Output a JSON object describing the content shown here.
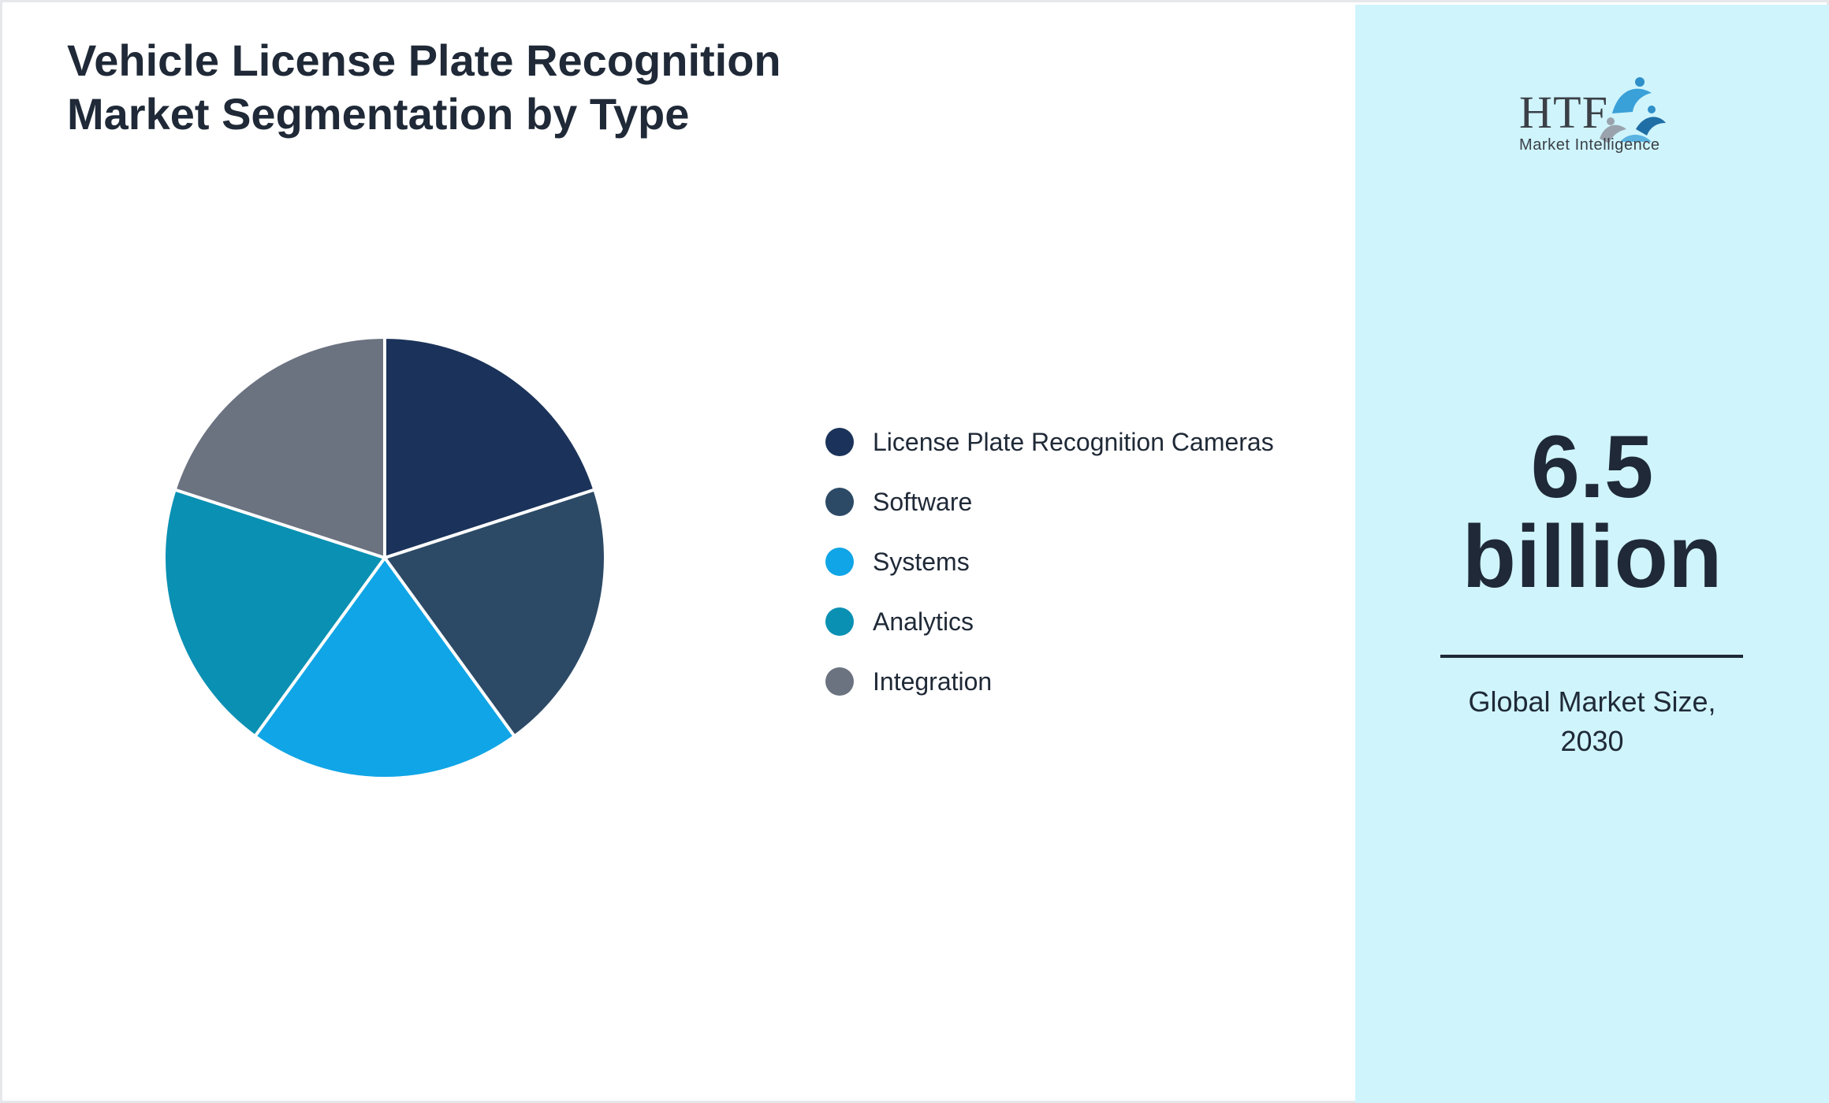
{
  "title_lines": [
    "Vehicle License Plate Recognition",
    "Market Segmentation by Type"
  ],
  "chart_data": {
    "type": "pie",
    "title": "Vehicle License Plate Recognition Market Segmentation by Type",
    "categories": [
      "License Plate Recognition Cameras",
      "Software",
      "Systems",
      "Analytics",
      "Integration"
    ],
    "values": [
      20,
      20,
      20,
      20,
      20
    ],
    "colors": [
      "#1b335a",
      "#2c4a66",
      "#10a5e6",
      "#0a90b3",
      "#6b7280"
    ],
    "legend_position": "right"
  },
  "market": {
    "value_line1": "6.5",
    "value_line2": "billion",
    "caption_line1": "Global Market Size,",
    "caption_line2": "2030"
  },
  "logo": {
    "text": "HTF",
    "subtext": "Market Intelligence"
  },
  "colors": {
    "sidebar_background": "#cff4fc",
    "text": "#1f2937"
  }
}
